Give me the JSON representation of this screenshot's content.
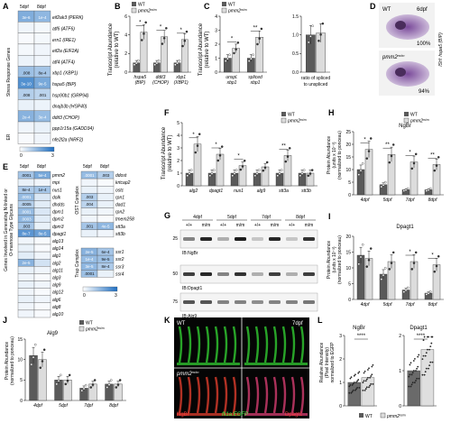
{
  "panels": {
    "A": {
      "letter": "A",
      "days": [
        "5dpf",
        "8dpf"
      ],
      "group_label": "Stress Response Genes",
      "er_label": "ER",
      "genes": [
        "eif2ak3 (PERK)",
        "atf6 (ATF6)",
        "ern1 (IRE1)",
        "eif2a (EIF2A)",
        "atf4 (ATF4)",
        "xbp1 (XBP1)",
        "hspa5 (BIP)",
        "hsp90b1 (GRP94)",
        "dnajb3b (HSP40)",
        "ddit3 (CHOP)",
        "ppp1r15a (GADD34)",
        "nfe2l2a (NRF2)"
      ],
      "cells": [
        [
          "3e-6",
          "1e-4"
        ],
        [
          "",
          ""
        ],
        [
          "",
          ""
        ],
        [
          "",
          ""
        ],
        [
          "",
          ""
        ],
        [
          ".008",
          "8e-4"
        ],
        [
          "3e-10",
          "9e-5"
        ],
        [
          ".008",
          ".001"
        ],
        [
          "",
          ""
        ],
        [
          "2e-4",
          "3e-4"
        ],
        [
          "",
          ""
        ],
        [
          "",
          ""
        ]
      ],
      "levels": [
        [
          1.7,
          1.5
        ],
        [
          0.2,
          0.15
        ],
        [
          0.1,
          0.15
        ],
        [
          0.15,
          0.2
        ],
        [
          0.25,
          0.2
        ],
        [
          1.3,
          1.2
        ],
        [
          2.3,
          1.8
        ],
        [
          1.0,
          0.9
        ],
        [
          0.3,
          0.25
        ],
        [
          1.6,
          1.4
        ],
        [
          0.2,
          0.3
        ],
        [
          0.1,
          0.2
        ]
      ],
      "scale": [
        "0",
        "3"
      ]
    },
    "B": {
      "letter": "B",
      "ylabel": "Transcript Abundance",
      "ylabel2": "(relative to WT)",
      "yticks": [
        "0",
        "2",
        "4",
        "6"
      ],
      "legend": [
        "WT",
        "pmm2"
      ],
      "legend_sup": "m/m",
      "groups": [
        "hspa5",
        "ddit3",
        "xbp1"
      ],
      "groups_sub": [
        "(BIP)",
        "(CHOP)",
        "(XBP1)"
      ],
      "stars": [
        "*",
        "*",
        "*"
      ]
    },
    "C": {
      "letter": "C",
      "ylabel": "Transcript Abundance",
      "ylabel2": "(relative to WT)",
      "yticks": [
        "0",
        "1",
        "2",
        "3",
        "4"
      ],
      "legend": [
        "WT",
        "pmm2"
      ],
      "legend_sup": "m/m",
      "groups": [
        "unspl.",
        "spliced"
      ],
      "groups_sub": [
        "xbp1",
        "xbp1"
      ],
      "stars": [
        "*",
        "**"
      ],
      "right_yticks": [
        "0.0",
        "0.5",
        "1.0",
        "1.5"
      ],
      "right_xlabel": [
        "ratio of spliced",
        "to unspliced"
      ]
    },
    "D": {
      "letter": "D",
      "label_wt": "WT",
      "label_mut": "pmm2",
      "label_mut_sup": "m/m",
      "day": "6dpf",
      "pct_top": "100%",
      "pct_bottom": "94%",
      "side_label": "ISH: hspa5 (BIP)"
    },
    "E": {
      "letter": "E",
      "days_left": [
        "5dpf",
        "8dpf"
      ],
      "days_right": [
        "5dpf",
        "8dpf"
      ],
      "group_label": [
        "Genes Involved in Generating N-linked or",
        "O-mannose Type Glycans"
      ],
      "genes_left": [
        "pmm2",
        "mpi",
        "nus1",
        "dolk",
        "dhdds",
        "dpm1",
        "dpm2",
        "dpm3",
        "dpagt1",
        "alg13",
        "alg14",
        "alg1",
        "alg2",
        "alg11",
        "alg3",
        "alg9",
        "alg12",
        "alg6",
        "alg8",
        "alg10"
      ],
      "cells_left": [
        [
          ".0001",
          "5e-4"
        ],
        [
          "",
          ""
        ],
        [
          "8e-4",
          "1e-4"
        ],
        [
          ".0001",
          ""
        ],
        [
          ".0005",
          ""
        ],
        [
          ".0001",
          ""
        ],
        [
          ".0003",
          ""
        ],
        [
          ".003",
          ""
        ],
        [
          "8e-7",
          "8e-5"
        ],
        [
          "",
          ""
        ],
        [
          "",
          ""
        ],
        [
          "",
          ""
        ],
        [
          "2e-5",
          ""
        ],
        [
          "",
          ""
        ],
        [
          "",
          ""
        ],
        [
          "",
          ""
        ],
        [
          "",
          ""
        ],
        [
          "",
          ""
        ],
        [
          "",
          ""
        ],
        [
          "",
          ""
        ]
      ],
      "levels_left": [
        [
          1.2,
          1.8
        ],
        [
          0.3,
          0.2
        ],
        [
          1.1,
          1.2
        ],
        [
          1.4,
          0.5
        ],
        [
          1.0,
          0.4
        ],
        [
          1.4,
          0.5
        ],
        [
          1.5,
          0.4
        ],
        [
          1.2,
          0.3
        ],
        [
          2.2,
          2.0
        ],
        [
          0.2,
          0.1
        ],
        [
          0.3,
          0.1
        ],
        [
          0.4,
          0.2
        ],
        [
          1.6,
          0.6
        ],
        [
          0.3,
          0.2
        ],
        [
          0.2,
          0.1
        ],
        [
          0.3,
          0.2
        ],
        [
          0.2,
          0.1
        ],
        [
          0.3,
          0.2
        ],
        [
          0.2,
          0.1
        ],
        [
          0.2,
          0.1
        ]
      ],
      "ost_label": "OST Complex",
      "trap_label": "Trap Complex",
      "genes_ost": [
        "ddost",
        "krtcap2",
        "ostc",
        "rpn1",
        "dad1",
        "rpn2",
        "tmem258",
        "stt3a",
        "stt3b"
      ],
      "cells_ost": [
        [
          ".0001",
          ".003"
        ],
        [
          "",
          ""
        ],
        [
          "",
          ""
        ],
        [
          ".003",
          ""
        ],
        [
          ".004",
          ""
        ],
        [
          "",
          ""
        ],
        [
          "",
          ""
        ],
        [
          ".001",
          "4e-5"
        ],
        [
          "",
          ""
        ]
      ],
      "levels_ost": [
        [
          1.4,
          1.0
        ],
        [
          0.2,
          0.1
        ],
        [
          0.3,
          0.2
        ],
        [
          1.0,
          0.3
        ],
        [
          0.9,
          0.3
        ],
        [
          0.3,
          0.2
        ],
        [
          0.2,
          0.1
        ],
        [
          1.2,
          1.5
        ],
        [
          0.3,
          0.2
        ]
      ],
      "genes_trap": [
        "ssr1",
        "ssr2",
        "ssr3",
        "ssr4"
      ],
      "cells_trap": [
        [
          "2e-5",
          "6e-4"
        ],
        [
          "1e-4",
          "9e-5"
        ],
        [
          "3e-5",
          "8e-4"
        ],
        [
          ".0001",
          ""
        ]
      ],
      "levels_trap": [
        [
          1.6,
          1.2
        ],
        [
          1.4,
          1.3
        ],
        [
          1.5,
          1.1
        ],
        [
          1.3,
          0.3
        ]
      ],
      "scale": [
        "0",
        "3"
      ]
    },
    "F": {
      "letter": "F",
      "ylabel": "Transcript Abundance",
      "ylabel2": "(relative to WT)",
      "yticks": [
        "0",
        "1",
        "2",
        "3",
        "4",
        "5"
      ],
      "legend": [
        "WT",
        "pmm2"
      ],
      "legend_sup": "m/m",
      "groups": [
        "alg2",
        "dpagt1",
        "nus1",
        "alg9",
        "stt3a",
        "stt3b"
      ],
      "stars": [
        "*",
        "*",
        "*",
        "",
        "**",
        ""
      ]
    },
    "G": {
      "letter": "G",
      "days": [
        "4dpf",
        "5dpf",
        "7dpf",
        "8dpf"
      ],
      "genotypes": [
        "+/+",
        "m/m",
        "+/+",
        "m/m",
        "+/+",
        "m/m",
        "+/+",
        "m/m"
      ],
      "mw": [
        "25",
        "50",
        "75"
      ],
      "blots": [
        "IB:NgBr",
        "IB:Dpagt1",
        "IB:Alg9"
      ]
    },
    "H": {
      "letter": "H",
      "title": "NgBr",
      "ylabel": "Protein Abundance",
      "ylabel2": "(units x 10⁻³)",
      "ylabel3": "(normalized to ponceau)",
      "yticks": [
        "0",
        "5",
        "10",
        "15",
        "20",
        "25"
      ],
      "legend": [
        "WT",
        "pmm2"
      ],
      "legend_sup": "m/m",
      "groups": [
        "4dpf",
        "5dpf",
        "7dpf",
        "8dpf"
      ],
      "stars": [
        "*",
        "**",
        "*",
        "**"
      ]
    },
    "I": {
      "letter": "I",
      "title": "Dpagt1",
      "ylabel": "Protein Abundance",
      "ylabel2": "(units x 10⁻³)",
      "ylabel3": "(normalized to ponceau)",
      "yticks": [
        "0",
        "5",
        "10",
        "15",
        "20"
      ],
      "groups": [
        "4dpf",
        "5dpf",
        "7dpf",
        "8dpf"
      ],
      "stars": [
        "",
        "",
        "*",
        "*"
      ]
    },
    "J": {
      "letter": "J",
      "title": "Alg9",
      "ylabel": "Protein Abundance",
      "ylabel2": "(normalized to ponceau)",
      "yticks": [
        "0",
        "5",
        "10",
        "15"
      ],
      "legend": [
        "WT",
        "pmm2"
      ],
      "legend_sup": "m/m",
      "groups": [
        "4dpf",
        "5dpf",
        "7dpf",
        "8dpf"
      ]
    },
    "K": {
      "letter": "K",
      "label_wt": "WT",
      "label_mut": "pmm2",
      "label_mut_sup": "m/m",
      "day": "7dpf",
      "stain_left": "NgBr",
      "stain_mid": "fli1a:EGFP",
      "stain_right": "Dpagt1"
    },
    "L": {
      "letter": "L",
      "ylabel": "Relative Abundance",
      "ylabel2": "(Pixel Intensity)",
      "ylabel3": "normalized to EGFP",
      "left_title": "NgBr",
      "right_title": "Dpagt1",
      "left_yticks": [
        "0",
        "1",
        "2",
        "3"
      ],
      "right_yticks": [
        "0",
        "1",
        "2"
      ],
      "stars": [
        "****",
        "****"
      ],
      "legend": [
        "WT",
        "pmm2"
      ],
      "legend_sup": "m/m"
    }
  },
  "chart_data": [
    {
      "panel": "B",
      "type": "bar",
      "categories": [
        "hspa5 (BIP)",
        "ddit3 (CHOP)",
        "xbp1 (XBP1)"
      ],
      "series": [
        {
          "name": "WT",
          "values": [
            1,
            1,
            1
          ]
        },
        {
          "name": "pmm2 m/m",
          "values": [
            4.3,
            3.8,
            3.5
          ]
        }
      ],
      "ylim": [
        0,
        6
      ]
    },
    {
      "panel": "C",
      "type": "bar",
      "categories": [
        "unspl. xbp1",
        "spliced xbp1"
      ],
      "series": [
        {
          "name": "WT",
          "values": [
            1,
            1
          ]
        },
        {
          "name": "pmm2 m/m",
          "values": [
            1.7,
            2.5
          ]
        }
      ],
      "ylim": [
        0,
        4
      ]
    },
    {
      "panel": "C-right",
      "type": "bar",
      "categories": [
        "ratio of spliced to unspliced"
      ],
      "series": [
        {
          "name": "WT",
          "values": [
            1.0
          ]
        },
        {
          "name": "pmm2 m/m",
          "values": [
            1.05
          ]
        }
      ],
      "ylim": [
        0,
        1.5
      ]
    },
    {
      "panel": "F",
      "type": "bar",
      "categories": [
        "alg2",
        "dpagt1",
        "nus1",
        "alg9",
        "stt3a",
        "stt3b"
      ],
      "series": [
        {
          "name": "WT",
          "values": [
            1,
            1,
            1,
            1,
            1,
            1
          ]
        },
        {
          "name": "pmm2 m/m",
          "values": [
            3.3,
            2.5,
            1.6,
            1.5,
            2.4,
            1.0
          ]
        }
      ],
      "ylim": [
        0,
        5
      ]
    },
    {
      "panel": "H",
      "type": "bar",
      "categories": [
        "4dpf",
        "5dpf",
        "7dpf",
        "8dpf"
      ],
      "series": [
        {
          "name": "WT",
          "values": [
            10,
            4,
            2,
            2
          ]
        },
        {
          "name": "pmm2 m/m",
          "values": [
            18,
            16,
            13,
            12
          ]
        }
      ],
      "ylim": [
        0,
        25
      ]
    },
    {
      "panel": "I",
      "type": "bar",
      "categories": [
        "4dpf",
        "5dpf",
        "7dpf",
        "8dpf"
      ],
      "series": [
        {
          "name": "WT",
          "values": [
            14,
            8,
            3,
            2
          ]
        },
        {
          "name": "pmm2 m/m",
          "values": [
            13,
            12,
            12,
            11
          ]
        }
      ],
      "ylim": [
        0,
        20
      ]
    },
    {
      "panel": "J",
      "type": "bar",
      "categories": [
        "4dpf",
        "5dpf",
        "7dpf",
        "8dpf"
      ],
      "series": [
        {
          "name": "WT",
          "values": [
            11,
            5,
            3,
            4
          ]
        },
        {
          "name": "pmm2 m/m",
          "values": [
            10,
            5,
            4,
            4
          ]
        }
      ],
      "ylim": [
        0,
        15
      ]
    },
    {
      "panel": "L-NgBr",
      "type": "scatter",
      "categories": [
        "WT",
        "pmm2 m/m"
      ],
      "series": [
        {
          "name": "mean",
          "values": [
            1.0,
            1.2
          ]
        }
      ],
      "ylim": [
        0,
        3
      ]
    },
    {
      "panel": "L-Dpagt1",
      "type": "scatter",
      "categories": [
        "WT",
        "pmm2 m/m"
      ],
      "series": [
        {
          "name": "mean",
          "values": [
            1.0,
            1.6
          ]
        }
      ],
      "ylim": [
        0,
        2
      ]
    }
  ],
  "colors": {
    "wt": "#5a5a5a",
    "mut": "#dcdcdc",
    "heat_low": "#ffffff",
    "heat_high": "#1f6fc2"
  }
}
